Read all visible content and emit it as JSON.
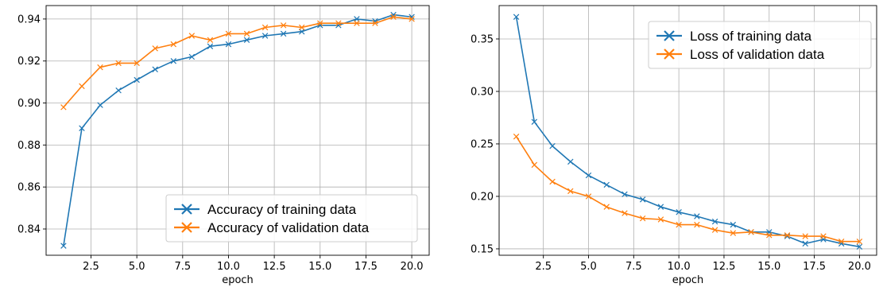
{
  "colors": {
    "series1": "#1f77b4",
    "series2": "#ff7f0e",
    "grid": "#b0b0b0"
  },
  "chart_data": [
    {
      "type": "line",
      "title": "",
      "xlabel": "epoch",
      "ylabel": "",
      "xlim": [
        0.05,
        20.95
      ],
      "ylim": [
        0.8275,
        0.9464
      ],
      "xticks": [
        2.5,
        5.0,
        7.5,
        10.0,
        12.5,
        15.0,
        17.5,
        20.0
      ],
      "xtick_labels": [
        "2.5",
        "5.0",
        "7.5",
        "10.0",
        "12.5",
        "15.0",
        "17.5",
        "20.0"
      ],
      "yticks": [
        0.84,
        0.86,
        0.88,
        0.9,
        0.92,
        0.94
      ],
      "ytick_labels": [
        "0.84",
        "0.86",
        "0.88",
        "0.90",
        "0.92",
        "0.94"
      ],
      "grid": true,
      "legend_position": "lower-right",
      "x": [
        1,
        2,
        3,
        4,
        5,
        6,
        7,
        8,
        9,
        10,
        11,
        12,
        13,
        14,
        15,
        16,
        17,
        18,
        19,
        20
      ],
      "series": [
        {
          "name": "Accuracy of training data",
          "color": "#1f77b4",
          "values": [
            0.832,
            0.888,
            0.899,
            0.906,
            0.911,
            0.916,
            0.92,
            0.922,
            0.927,
            0.928,
            0.93,
            0.932,
            0.933,
            0.934,
            0.937,
            0.937,
            0.94,
            0.939,
            0.942,
            0.941
          ]
        },
        {
          "name": "Accuracy of validation data",
          "color": "#ff7f0e",
          "values": [
            0.898,
            0.908,
            0.917,
            0.919,
            0.919,
            0.926,
            0.928,
            0.932,
            0.93,
            0.933,
            0.933,
            0.936,
            0.937,
            0.936,
            0.938,
            0.938,
            0.938,
            0.938,
            0.941,
            0.94
          ]
        }
      ]
    },
    {
      "type": "line",
      "title": "",
      "xlabel": "epoch",
      "ylabel": "",
      "xlim": [
        0.05,
        20.95
      ],
      "ylim": [
        0.1439,
        0.3818
      ],
      "xticks": [
        2.5,
        5.0,
        7.5,
        10.0,
        12.5,
        15.0,
        17.5,
        20.0
      ],
      "xtick_labels": [
        "2.5",
        "5.0",
        "7.5",
        "10.0",
        "12.5",
        "15.0",
        "17.5",
        "20.0"
      ],
      "yticks": [
        0.15,
        0.2,
        0.25,
        0.3,
        0.35
      ],
      "ytick_labels": [
        "0.15",
        "0.20",
        "0.25",
        "0.30",
        "0.35"
      ],
      "grid": true,
      "legend_position": "upper-right",
      "x": [
        1,
        2,
        3,
        4,
        5,
        6,
        7,
        8,
        9,
        10,
        11,
        12,
        13,
        14,
        15,
        16,
        17,
        18,
        19,
        20
      ],
      "series": [
        {
          "name": "Loss of training data",
          "color": "#1f77b4",
          "values": [
            0.371,
            0.271,
            0.248,
            0.233,
            0.22,
            0.211,
            0.202,
            0.197,
            0.19,
            0.185,
            0.181,
            0.176,
            0.173,
            0.166,
            0.166,
            0.162,
            0.155,
            0.159,
            0.155,
            0.152
          ]
        },
        {
          "name": "Loss of validation data",
          "color": "#ff7f0e",
          "values": [
            0.257,
            0.23,
            0.214,
            0.205,
            0.2,
            0.19,
            0.184,
            0.179,
            0.178,
            0.173,
            0.173,
            0.168,
            0.165,
            0.166,
            0.163,
            0.163,
            0.162,
            0.162,
            0.157,
            0.157
          ]
        }
      ]
    }
  ]
}
